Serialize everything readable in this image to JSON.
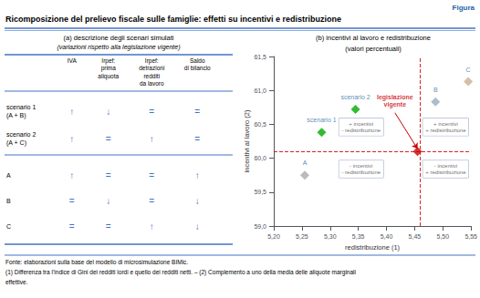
{
  "chart_data": {
    "type": "scatter",
    "title": "Ricomposizione del prelievo fiscale sulle famiglie: effetti su incentivi e redistribuzione",
    "header_label": "Figura",
    "table": {
      "title": "(a) descrizione degli scenari simulati",
      "subtitle": "(variazioni rispetto alla legislazione vigente)",
      "columns": [
        "IVA",
        "Irpef:\nprima\naliquota",
        "Irpef:\ndetrazioni\nredditi\nda lavoro",
        "Saldo\ndi bilancio"
      ],
      "rows": [
        "scenario 1\n(A + B)",
        "scenario 2\n(A + C)",
        "A",
        "B",
        "C"
      ],
      "cells": [
        [
          "↑",
          "↓",
          "=",
          "="
        ],
        [
          "↑",
          "=",
          "↑",
          "="
        ],
        [
          "↑",
          "=",
          "=",
          "↑"
        ],
        [
          "=",
          "↓",
          "=",
          "↓"
        ],
        [
          "=",
          "=",
          "↑",
          "↓"
        ]
      ]
    },
    "panel_title": "(b) incentivi al lavoro e redistribuzione",
    "panel_subtitle": "(valori percentuali)",
    "xlabel": "redistribuzione (1)",
    "ylabel": "incentivi al lavoro (2)",
    "points": [
      {
        "label": "A",
        "x": 5.255,
        "y": 59.75,
        "color": "#aaaaaa",
        "marker": "diamond"
      },
      {
        "label": "scenario 1",
        "x": 5.285,
        "y": 60.38,
        "color": "#00aa00",
        "marker": "diamond"
      },
      {
        "label": "scenario 2",
        "x": 5.345,
        "y": 60.72,
        "color": "#00aa00",
        "marker": "diamond"
      },
      {
        "label": "B",
        "x": 5.487,
        "y": 60.83,
        "color": "#9aacbe",
        "marker": "diamond"
      },
      {
        "label": "C",
        "x": 5.545,
        "y": 61.13,
        "color": "#c8b090",
        "marker": "diamond"
      },
      {
        "x": 5.455,
        "y": 60.1,
        "color": "#cc0000",
        "marker": "diamond"
      }
    ],
    "reference_lines": {
      "x": 5.455,
      "y": 60.1,
      "color": "#cc0000",
      "line_style": "dashed"
    },
    "arrow_annotation": {
      "text": "legislazione\nvigente",
      "x": 5.415,
      "y": 60.67,
      "to_x": 5.455,
      "to_y": 60.14,
      "color": "#cc0000"
    },
    "quadrant_labels": [
      {
        "x": 5.355,
        "y": 60.46,
        "text": "+ incentivi\n- redistribuzione"
      },
      {
        "x": 5.355,
        "y": 59.84,
        "text": "- incentivi\n- redistribuzione"
      },
      {
        "x": 5.505,
        "y": 60.46,
        "text": "+ incentivi\n+ redistribuzione"
      },
      {
        "x": 5.505,
        "y": 59.84,
        "text": "- incentivi\n+ redistribuzione"
      }
    ],
    "xlim": [
      5.2,
      5.55
    ],
    "ylim": [
      59.0,
      61.5
    ],
    "xticks": [
      {
        "value": 5.2,
        "label": "5,20"
      },
      {
        "value": 5.25,
        "label": "5,25"
      },
      {
        "value": 5.3,
        "label": "5,30"
      },
      {
        "value": 5.35,
        "label": "5,35"
      },
      {
        "value": 5.4,
        "label": "5,40"
      },
      {
        "value": 5.45,
        "label": "5,45"
      },
      {
        "value": 5.5,
        "label": "5,50"
      },
      {
        "value": 5.55,
        "label": "5,55"
      }
    ],
    "yticks": [
      {
        "value": 59.0,
        "label": "59,0"
      },
      {
        "value": 59.5,
        "label": "59,5"
      },
      {
        "value": 60.0,
        "label": "60,0"
      },
      {
        "value": 60.5,
        "label": "60,5"
      },
      {
        "value": 61.0,
        "label": "61,0"
      },
      {
        "value": 61.5,
        "label": "61,5"
      }
    ],
    "grid": false,
    "footnotes": [
      "Fonte: elaborazioni sulla base del modello di microsimulazione BIMic.",
      "(1) Differenza tra l’indice di Gini dei redditi lordi e quello dei redditi netti. – (2) Complemento a uno della media delle aliquote marginali",
      "effettive."
    ]
  }
}
